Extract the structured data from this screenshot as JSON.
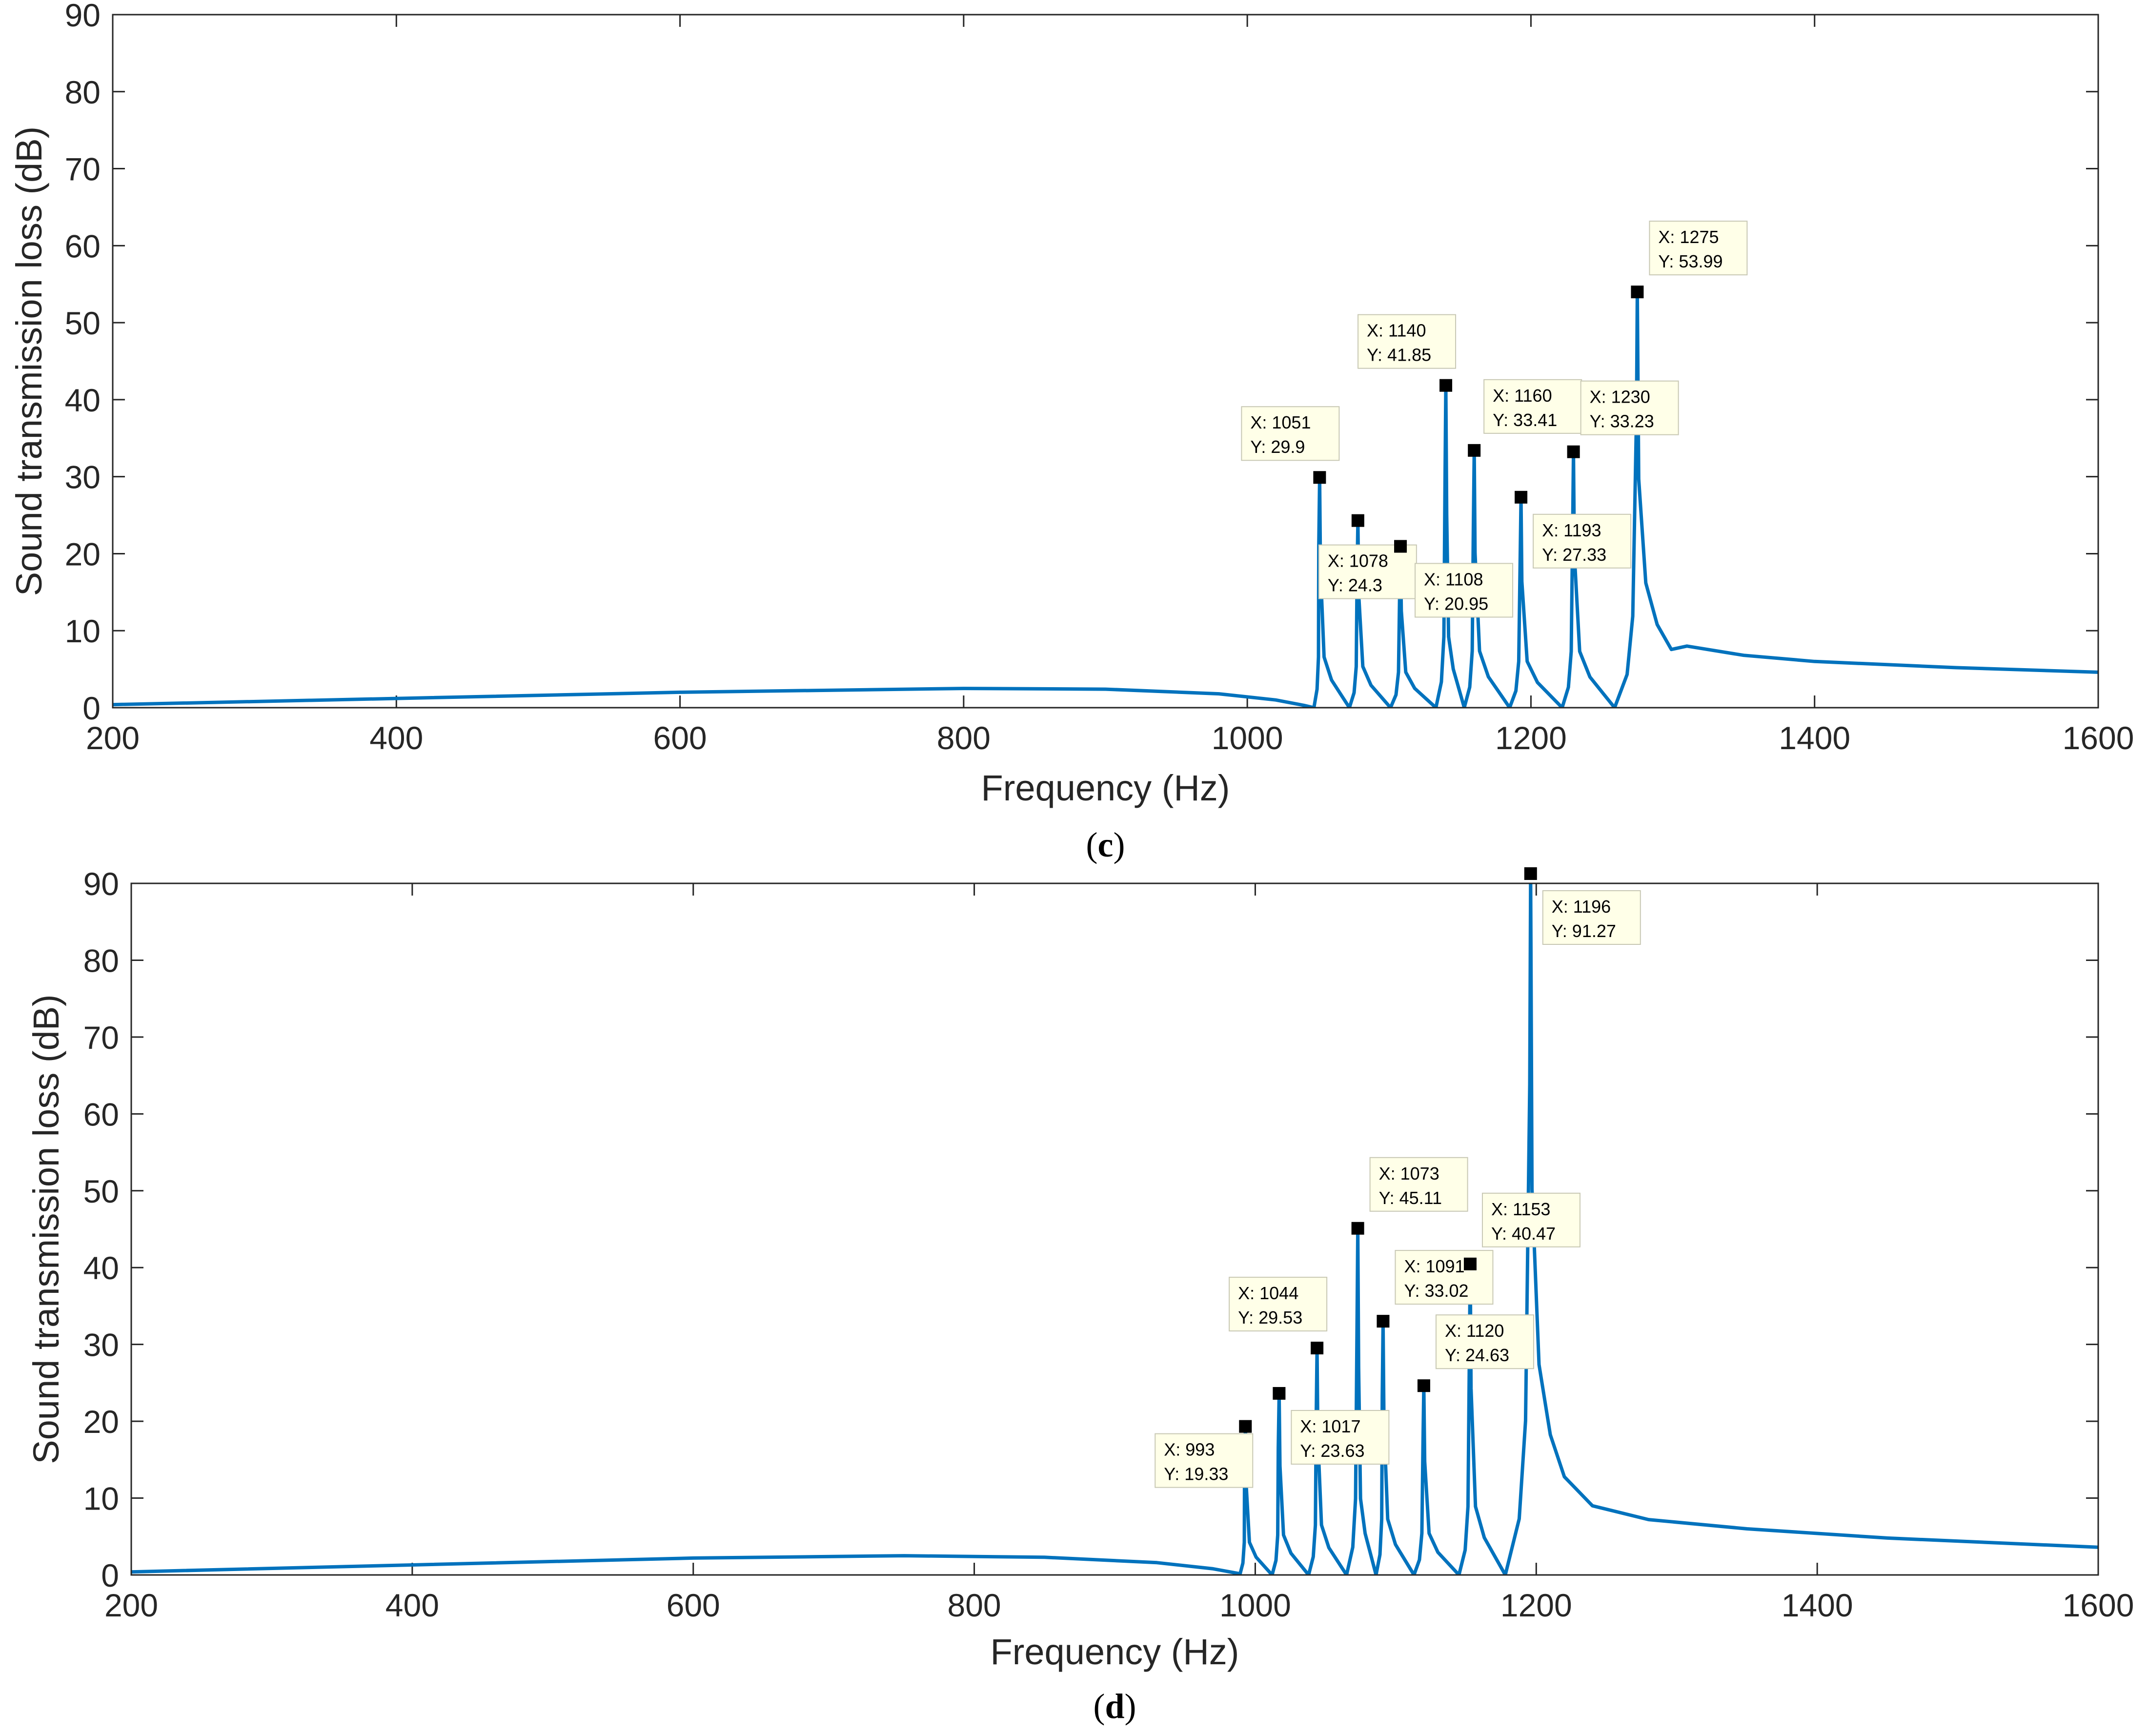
{
  "colors": {
    "series": "#0072BD",
    "marker": "#000000",
    "datatip_bg": "#FFFFE8"
  },
  "chart_data": [
    {
      "type": "line",
      "panel": "c",
      "caption": "(c)",
      "xlabel": "Frequency (Hz)",
      "ylabel": "Sound transmission loss (dB)",
      "xlim": [
        200,
        1600
      ],
      "ylim": [
        0,
        90
      ],
      "xticks": [
        "200",
        "400",
        "600",
        "800",
        "1000",
        "1200",
        "1400",
        "1600"
      ],
      "yticks": [
        "0",
        "10",
        "20",
        "30",
        "40",
        "50",
        "60",
        "70",
        "80",
        "90"
      ],
      "grid": false,
      "baseline": {
        "x": [
          200,
          400,
          600,
          800,
          900,
          980,
          1020,
          1040
        ],
        "y": [
          0.4,
          1.2,
          2.0,
          2.5,
          2.4,
          1.8,
          1.0,
          0.3
        ]
      },
      "tail": {
        "x": [
          1310,
          1350,
          1400,
          1500,
          1600
        ],
        "y": [
          8.0,
          6.8,
          6.0,
          5.2,
          4.6
        ]
      },
      "troughs": [
        1047,
        1072,
        1101,
        1133,
        1153,
        1185,
        1222,
        1259
      ],
      "peaks": [
        {
          "x": 1051,
          "y": 29.9,
          "label_x": "X: 1051",
          "label_y": "Y: 29.9"
        },
        {
          "x": 1078,
          "y": 24.3,
          "label_x": "X: 1078",
          "label_y": "Y: 24.3"
        },
        {
          "x": 1108,
          "y": 20.95,
          "label_x": "X: 1108",
          "label_y": "Y: 20.95"
        },
        {
          "x": 1140,
          "y": 41.85,
          "label_x": "X: 1140",
          "label_y": "Y: 41.85"
        },
        {
          "x": 1160,
          "y": 33.41,
          "label_x": "X: 1160",
          "label_y": "Y: 33.41"
        },
        {
          "x": 1193,
          "y": 27.33,
          "label_x": "X: 1193",
          "label_y": "Y: 27.33"
        },
        {
          "x": 1230,
          "y": 33.23,
          "label_x": "X: 1230",
          "label_y": "Y: 33.23"
        },
        {
          "x": 1275,
          "y": 53.99,
          "label_x": "X: 1275",
          "label_y": "Y: 53.99"
        }
      ]
    },
    {
      "type": "line",
      "panel": "d",
      "caption": "(d)",
      "xlabel": "Frequency (Hz)",
      "ylabel": "Sound transmission loss (dB)",
      "xlim": [
        200,
        1600
      ],
      "ylim": [
        0,
        90
      ],
      "xticks": [
        "200",
        "400",
        "600",
        "800",
        "1000",
        "1200",
        "1400",
        "1600"
      ],
      "yticks": [
        "0",
        "10",
        "20",
        "30",
        "40",
        "50",
        "60",
        "70",
        "80",
        "90"
      ],
      "grid": false,
      "baseline": {
        "x": [
          200,
          400,
          600,
          750,
          850,
          930,
          970,
          988
        ],
        "y": [
          0.4,
          1.3,
          2.2,
          2.5,
          2.3,
          1.6,
          0.8,
          0.2
        ]
      },
      "tail": {
        "x": [
          1240,
          1280,
          1350,
          1450,
          1600
        ],
        "y": [
          9.0,
          7.2,
          6.0,
          4.8,
          3.6
        ]
      },
      "troughs": [
        989,
        1012,
        1038,
        1065,
        1086,
        1113,
        1145,
        1178
      ],
      "peaks": [
        {
          "x": 993,
          "y": 19.33,
          "label_x": "X: 993",
          "label_y": "Y: 19.33"
        },
        {
          "x": 1017,
          "y": 23.63,
          "label_x": "X: 1017",
          "label_y": "Y: 23.63"
        },
        {
          "x": 1044,
          "y": 29.53,
          "label_x": "X: 1044",
          "label_y": "Y: 29.53"
        },
        {
          "x": 1073,
          "y": 45.11,
          "label_x": "X: 1073",
          "label_y": "Y: 45.11"
        },
        {
          "x": 1091,
          "y": 33.02,
          "label_x": "X: 1091",
          "label_y": "Y: 33.02"
        },
        {
          "x": 1120,
          "y": 24.63,
          "label_x": "X: 1120",
          "label_y": "Y: 24.63"
        },
        {
          "x": 1153,
          "y": 40.47,
          "label_x": "X: 1153",
          "label_y": "Y: 40.47"
        },
        {
          "x": 1196,
          "y": 91.27,
          "label_x": "X: 1196",
          "label_y": "Y: 91.27"
        }
      ]
    }
  ]
}
